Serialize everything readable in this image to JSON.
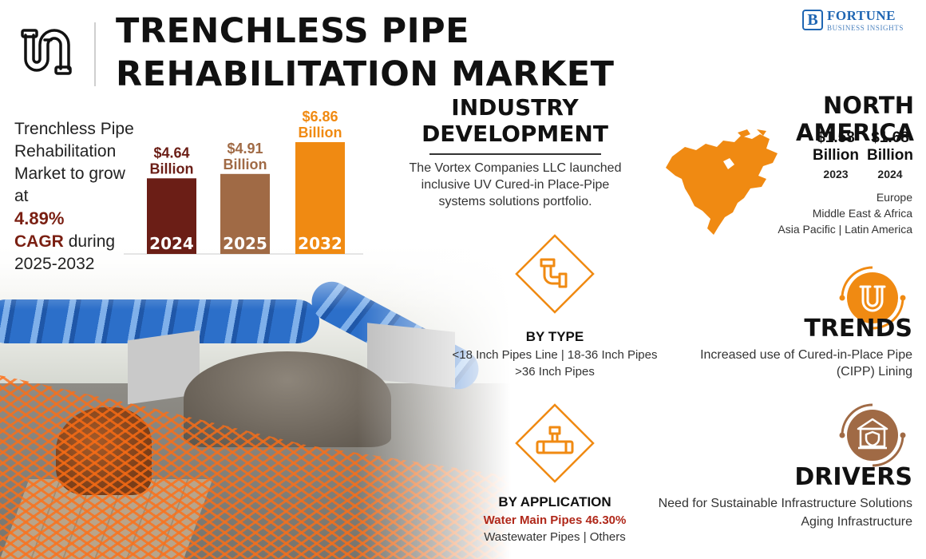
{
  "header": {
    "title": "TRENCHLESS PIPE REHABILITATION MARKET",
    "brand_name": "FORTUNE",
    "brand_sub": "BUSINESS INSIGHTS",
    "brand_mark": "B"
  },
  "growth": {
    "line1": "Trenchless Pipe Rehabilitation Market to grow at",
    "cagr_value": "4.89%",
    "cagr_label": "CAGR",
    "line2": "during 2025-2032"
  },
  "chart_data": {
    "type": "bar",
    "categories": [
      "2024",
      "2025",
      "2032"
    ],
    "values": [
      4.64,
      4.91,
      6.86
    ],
    "labels": [
      "$4.64 Billion",
      "$4.91 Billion",
      "$6.86 Billion"
    ],
    "colors": [
      "#6b1e16",
      "#a06a45",
      "#f08a12"
    ],
    "title": "",
    "xlabel": "",
    "ylabel": "",
    "grid": false,
    "legend": "none"
  },
  "industry": {
    "title_line1": "INDUSTRY",
    "title_line2": "DEVELOPMENT",
    "text": "The Vortex Companies LLC launched inclusive UV Cured-in Place-Pipe systems solutions portfolio."
  },
  "north_america": {
    "title": "NORTH AMERICA",
    "values": [
      {
        "value": "$1.58",
        "unit": "Billion",
        "year": "2023"
      },
      {
        "value": "$1.68",
        "unit": "Billion",
        "year": "2024"
      }
    ],
    "regions": [
      "Europe",
      "Middle East & Africa",
      "Asia Pacific  |  Latin America"
    ],
    "map_color": "#f08a12"
  },
  "by_type": {
    "title": "BY TYPE",
    "line1": "<18 Inch Pipes Line  |  18-36 Inch Pipes",
    "line2": ">36 Inch Pipes"
  },
  "by_application": {
    "title": "BY APPLICATION",
    "highlight": "Water Main Pipes 46.30%",
    "line2": "Wastewater Pipes  |  Others"
  },
  "trends": {
    "title": "TRENDS",
    "text": "Increased use of Cured-in-Place Pipe (CIPP) Lining"
  },
  "drivers": {
    "title": "DRIVERS",
    "line1": "Need for Sustainable Infrastructure Solutions",
    "line2": "Aging Infrastructure"
  },
  "colors": {
    "accent_orange": "#f08a12",
    "dark_red": "#7a1f12",
    "brown": "#a06a45",
    "brand_blue": "#1f66b3"
  }
}
